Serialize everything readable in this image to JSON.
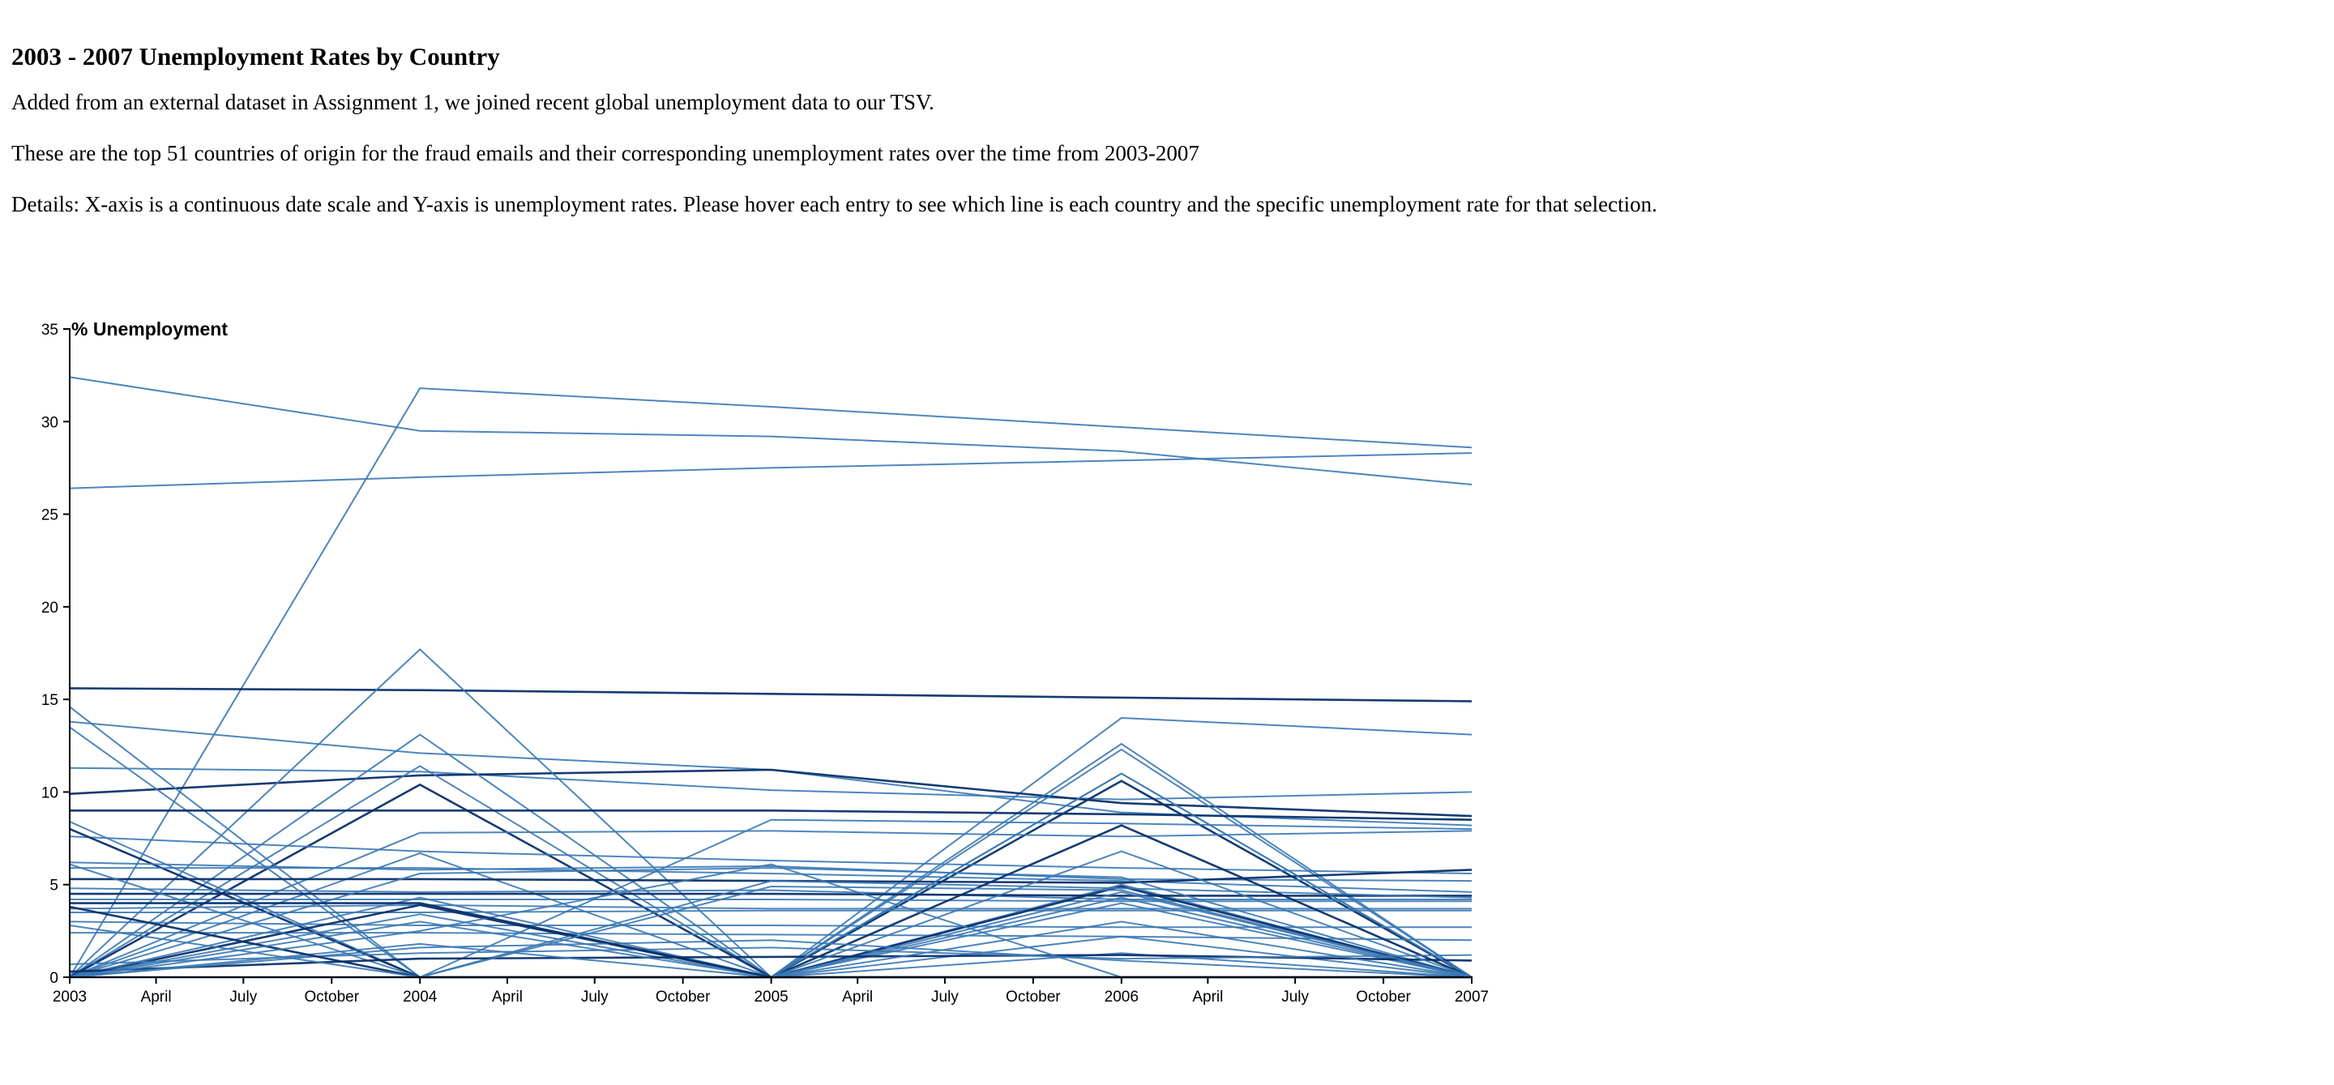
{
  "header": {
    "title": "2003 - 2007 Unemployment Rates by Country",
    "para1": "Added from an external dataset in Assignment 1, we joined recent global unemployment data to our TSV.",
    "para2": "These are the top 51 countries of origin for the fraud emails and their corresponding unemployment rates over the time from 2003-2007",
    "para3": "Details: X-axis is a continuous date scale and Y-axis is unemployment rates. Please hover each entry to see which line is each country and the specific unemployment rate for that selection."
  },
  "colors": {
    "line_light": "#3a78b4",
    "line_dark": "#08306b",
    "axis": "#000000"
  },
  "chart_data": {
    "type": "line",
    "title": "",
    "xlabel": "",
    "ylabel": "% Unemployment",
    "x": [
      "2003",
      "2004",
      "2005",
      "2006",
      "2007"
    ],
    "x_scale": "time",
    "xlim": [
      "2003-01-01",
      "2007-01-01"
    ],
    "ylim": [
      0,
      35
    ],
    "x_ticks": [
      "2003",
      "April",
      "July",
      "October",
      "2004",
      "April",
      "July",
      "October",
      "2005",
      "April",
      "July",
      "October",
      "2006",
      "April",
      "July",
      "October",
      "2007"
    ],
    "y_ticks": [
      "0",
      "5",
      "10",
      "15",
      "20",
      "25",
      "30",
      "35"
    ],
    "grid": false,
    "legend": "none",
    "series": [
      {
        "values": [
          32.4,
          29.5,
          29.2,
          28.4,
          26.6
        ]
      },
      {
        "values": [
          0,
          31.8,
          30.8,
          29.7,
          28.6
        ]
      },
      {
        "values": [
          26.4,
          27.0,
          27.5,
          27.9,
          28.3
        ]
      },
      {
        "values": [
          15.6,
          15.5,
          15.3,
          15.1,
          14.9
        ]
      },
      {
        "values": [
          0,
          0,
          0,
          14.0,
          13.1
        ]
      },
      {
        "values": [
          13.8,
          12.1,
          11.2,
          8.9,
          8.2
        ]
      },
      {
        "values": [
          11.3,
          11.1,
          10.1,
          9.6,
          10.0
        ]
      },
      {
        "values": [
          9.9,
          10.9,
          11.2,
          9.4,
          8.7
        ]
      },
      {
        "values": [
          0,
          17.7,
          0,
          12.6,
          0
        ]
      },
      {
        "values": [
          0,
          13.1,
          0,
          12.3,
          0
        ]
      },
      {
        "values": [
          0,
          11.4,
          0,
          11.0,
          0
        ]
      },
      {
        "values": [
          0,
          10.4,
          0,
          10.6,
          0
        ]
      },
      {
        "values": [
          8.4,
          0,
          8.5,
          8.3,
          8.0
        ]
      },
      {
        "values": [
          14.6,
          0,
          0,
          0,
          0
        ]
      },
      {
        "values": [
          13.5,
          0,
          0,
          0,
          0
        ]
      },
      {
        "values": [
          9.0,
          9.0,
          9.0,
          8.8,
          8.5
        ]
      },
      {
        "values": [
          0,
          7.8,
          7.9,
          7.6,
          7.9
        ]
      },
      {
        "values": [
          7.6,
          6.8,
          6.3,
          5.9,
          5.6
        ]
      },
      {
        "values": [
          0,
          6.7,
          0,
          5.0,
          0
        ]
      },
      {
        "values": [
          8.0,
          0,
          0,
          0,
          0
        ]
      },
      {
        "values": [
          6.2,
          5.8,
          6.0,
          5.3,
          5.2
        ]
      },
      {
        "values": [
          5.9,
          5.9,
          5.6,
          5.2,
          4.6
        ]
      },
      {
        "values": [
          4.8,
          4.6,
          4.7,
          4.2,
          4.2
        ]
      },
      {
        "values": [
          4.5,
          4.5,
          4.5,
          4.4,
          4.4
        ]
      },
      {
        "values": [
          4.2,
          4.2,
          4.2,
          4.1,
          4.1
        ]
      },
      {
        "values": [
          3.7,
          3.9,
          3.7,
          3.7,
          3.7
        ]
      },
      {
        "values": [
          3.5,
          3.5,
          3.6,
          3.6,
          3.6
        ]
      },
      {
        "values": [
          5.3,
          5.3,
          5.2,
          5.1,
          5.8
        ]
      },
      {
        "values": [
          0,
          5.6,
          5.9,
          5.4,
          0
        ]
      },
      {
        "values": [
          3.0,
          2.8,
          2.8,
          2.7,
          2.7
        ]
      },
      {
        "values": [
          2.4,
          2.4,
          2.3,
          2.2,
          2.0
        ]
      },
      {
        "values": [
          0,
          3.9,
          0,
          4.9,
          0
        ]
      },
      {
        "values": [
          0,
          4.3,
          0,
          4.6,
          0
        ]
      },
      {
        "values": [
          0,
          3.4,
          0,
          4.0,
          0
        ]
      },
      {
        "values": [
          6.1,
          0,
          5.2,
          4.8,
          4.3
        ]
      },
      {
        "values": [
          0,
          0,
          0,
          8.2,
          0
        ]
      },
      {
        "values": [
          0,
          0,
          0,
          4.3,
          0
        ]
      },
      {
        "values": [
          0,
          0,
          0,
          2.2,
          0
        ]
      },
      {
        "values": [
          0,
          0,
          0,
          1.3,
          0
        ]
      },
      {
        "values": [
          0.3,
          1.0,
          1.1,
          1.2,
          0.9
        ]
      },
      {
        "values": [
          0.7,
          1.3,
          1.6,
          1.0,
          1.2
        ]
      },
      {
        "values": [
          0,
          1.6,
          2.0,
          0.9,
          0
        ]
      },
      {
        "values": [
          0,
          1.8,
          0,
          0,
          0
        ]
      },
      {
        "values": [
          3.8,
          0,
          0,
          0,
          0
        ]
      },
      {
        "values": [
          2.8,
          0,
          0,
          3.0,
          0
        ]
      },
      {
        "values": [
          0,
          3.0,
          0,
          0,
          0
        ]
      },
      {
        "values": [
          0,
          2.5,
          6.1,
          0,
          0
        ]
      },
      {
        "values": [
          4.0,
          4.0,
          0,
          0,
          0
        ]
      },
      {
        "values": [
          0,
          0,
          4.9,
          4.7,
          0
        ]
      },
      {
        "values": [
          0,
          0,
          0,
          11.0,
          0
        ]
      },
      {
        "values": [
          0,
          0,
          0,
          6.8,
          0
        ]
      }
    ]
  }
}
